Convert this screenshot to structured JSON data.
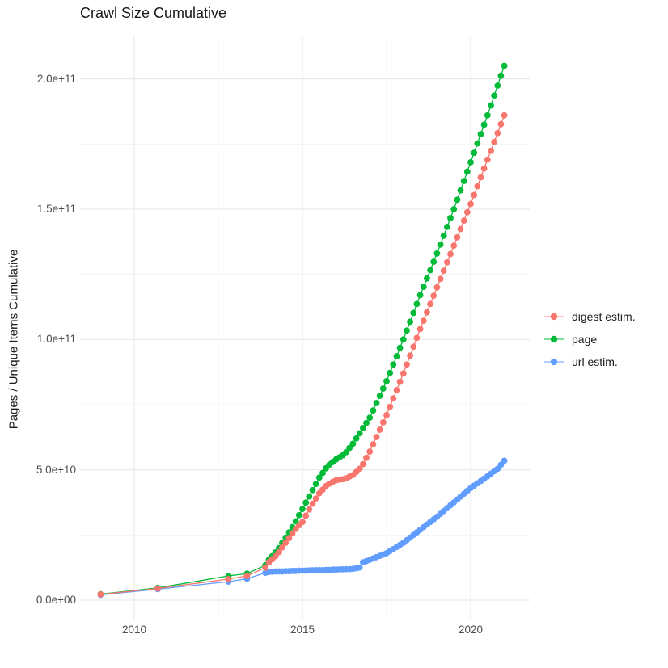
{
  "title": "Crawl Size Cumulative",
  "legend": {
    "items": [
      {
        "label": "digest estim.",
        "color": "#F8766D"
      },
      {
        "label": "page",
        "color": "#00BA38"
      },
      {
        "label": "url estim.",
        "color": "#619CFF"
      }
    ]
  },
  "colors": {
    "background": "#ffffff",
    "grid_major": "#e9e9e9",
    "grid_minor": "#f2f2f2",
    "tick_label": "#4d4d4d",
    "text": "#1a1a1a"
  },
  "chart_data": {
    "type": "line",
    "title": "Crawl Size Cumulative",
    "xlabel": "",
    "ylabel": "Pages / Unique Items Cumulative",
    "value_unit": "1e9 (billions); y axis shown in scientific notation",
    "xlim": [
      2008.4,
      2021.7
    ],
    "ylim_e9": [
      -8,
      215
    ],
    "grid": true,
    "legend_position": "right",
    "x_ticks": {
      "major": [
        2010,
        2015,
        2020
      ],
      "minor": [
        2012.5,
        2017.5
      ],
      "major_labels": [
        "2010",
        "2015",
        "2020"
      ]
    },
    "y_ticks": {
      "major_values_e9": [
        0,
        50,
        100,
        150,
        200
      ],
      "major_labels": [
        "0.0e+00",
        "5.0e+10",
        "1.0e+11",
        "1.5e+11",
        "2.0e+11"
      ],
      "minor_values_e9": [
        25,
        75,
        125,
        175
      ]
    },
    "x": [
      2009.0,
      2010.7,
      2012.8,
      2013.35,
      2013.9,
      2014.0,
      2014.1,
      2014.2,
      2014.3,
      2014.4,
      2014.5,
      2014.6,
      2014.7,
      2014.8,
      2014.9,
      2015.0,
      2015.1,
      2015.2,
      2015.3,
      2015.4,
      2015.5,
      2015.6,
      2015.7,
      2015.8,
      2015.9,
      2016.0,
      2016.1,
      2016.2,
      2016.3,
      2016.4,
      2016.5,
      2016.6,
      2016.7,
      2016.8,
      2016.9,
      2017.0,
      2017.1,
      2017.2,
      2017.3,
      2017.4,
      2017.5,
      2017.6,
      2017.7,
      2017.8,
      2017.9,
      2018.0,
      2018.1,
      2018.2,
      2018.3,
      2018.4,
      2018.5,
      2018.6,
      2018.7,
      2018.8,
      2018.9,
      2019.0,
      2019.1,
      2019.2,
      2019.3,
      2019.4,
      2019.5,
      2019.6,
      2019.7,
      2019.8,
      2019.9,
      2020.0,
      2020.1,
      2020.2,
      2020.3,
      2020.4,
      2020.5,
      2020.6,
      2020.7,
      2020.8,
      2020.9,
      2021.0
    ],
    "series": [
      {
        "name": "digest estim.",
        "color": "#F8766D",
        "values_e9": [
          2.2,
          4.5,
          8.1,
          9.3,
          12.5,
          14.5,
          15.7,
          16.9,
          18.4,
          20.2,
          22.0,
          23.8,
          25.6,
          27.3,
          28.7,
          30.0,
          32.4,
          34.8,
          37.0,
          39.0,
          41.0,
          42.4,
          43.8,
          44.7,
          45.4,
          46.0,
          46.2,
          46.4,
          46.8,
          47.4,
          48.0,
          49.2,
          50.4,
          52.2,
          54.6,
          57.0,
          59.8,
          62.6,
          65.4,
          68.2,
          71.0,
          74.2,
          77.4,
          80.6,
          83.8,
          87.0,
          90.4,
          93.8,
          97.2,
          100.6,
          104.0,
          107.2,
          110.4,
          113.6,
          116.8,
          120.0,
          123.2,
          126.4,
          129.6,
          132.8,
          136.0,
          139.2,
          142.4,
          145.6,
          148.8,
          152.0,
          155.4,
          158.8,
          162.2,
          165.6,
          169.0,
          172.4,
          175.8,
          179.2,
          182.6,
          186.0
        ]
      },
      {
        "name": "page",
        "color": "#00BA38",
        "values_e9": [
          2.3,
          4.7,
          9.3,
          10.2,
          13.4,
          15.5,
          16.9,
          18.3,
          20.0,
          22.0,
          24.0,
          26.0,
          28.0,
          30.2,
          32.6,
          35.0,
          37.4,
          39.8,
          42.2,
          44.6,
          47.0,
          48.8,
          50.6,
          52.0,
          53.0,
          54.0,
          54.8,
          55.6,
          56.8,
          58.4,
          60.0,
          62.0,
          64.0,
          66.0,
          68.0,
          70.0,
          72.8,
          75.6,
          78.4,
          81.2,
          84.0,
          87.2,
          90.4,
          93.6,
          96.8,
          100.0,
          103.4,
          106.8,
          110.2,
          113.6,
          117.0,
          120.2,
          123.4,
          126.6,
          129.8,
          133.0,
          136.4,
          139.8,
          143.2,
          146.6,
          150.0,
          153.6,
          157.2,
          160.8,
          164.4,
          168.0,
          171.6,
          175.2,
          178.8,
          182.4,
          186.0,
          189.8,
          193.6,
          197.4,
          201.2,
          205.0
        ]
      },
      {
        "name": "url estim.",
        "color": "#619CFF",
        "values_e9": [
          2.0,
          4.2,
          7.1,
          8.2,
          10.5,
          10.8,
          10.9,
          11.0,
          11.0,
          11.0,
          11.1,
          11.1,
          11.2,
          11.2,
          11.3,
          11.3,
          11.3,
          11.4,
          11.4,
          11.5,
          11.5,
          11.5,
          11.6,
          11.6,
          11.7,
          11.7,
          11.8,
          11.8,
          11.9,
          11.9,
          12.0,
          12.2,
          12.5,
          14.5,
          15.0,
          15.5,
          16.0,
          16.5,
          17.0,
          17.5,
          18.0,
          18.8,
          19.6,
          20.4,
          21.2,
          22.0,
          23.0,
          24.0,
          25.0,
          26.0,
          27.0,
          28.0,
          29.0,
          30.0,
          31.0,
          32.0,
          33.1,
          34.2,
          35.3,
          36.4,
          37.5,
          38.6,
          39.7,
          40.8,
          41.9,
          43.0,
          43.9,
          44.8,
          45.7,
          46.6,
          47.5,
          48.5,
          49.5,
          50.4,
          51.9,
          53.5
        ]
      }
    ]
  }
}
